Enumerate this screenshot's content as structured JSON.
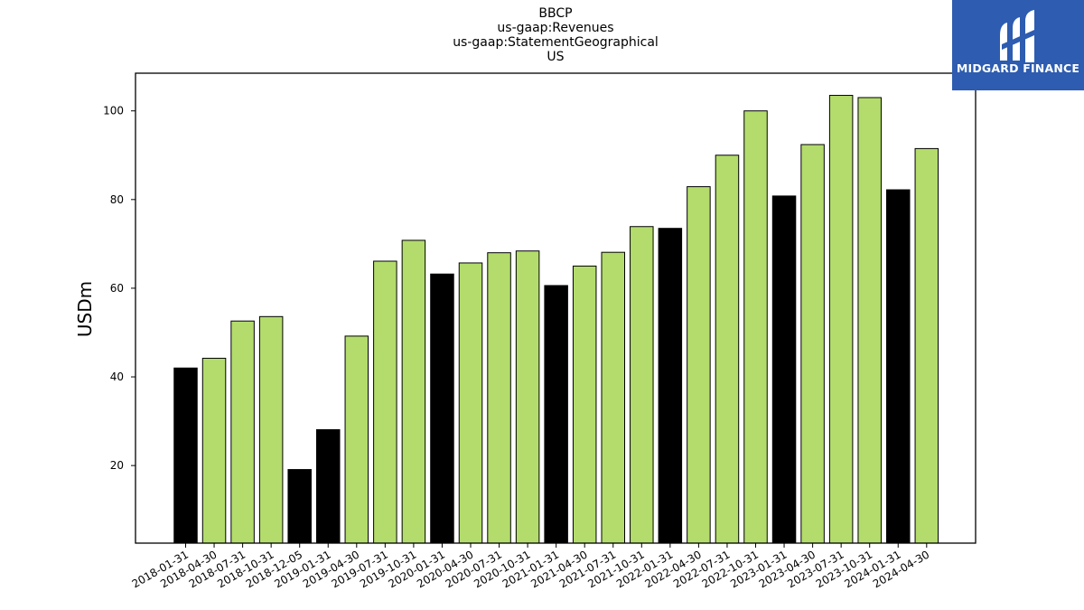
{
  "brand": {
    "name": "MIDGARD FINANCE",
    "bg_color": "#2d5cb0"
  },
  "chart_data": {
    "type": "bar",
    "title_lines": [
      "BBCP",
      "us-gaap:Revenues",
      "us-gaap:StatementGeographical",
      "US"
    ],
    "xlabel": "",
    "ylabel": "USDm",
    "ylim": [
      2.5,
      108.5
    ],
    "yticks": [
      20,
      40,
      60,
      80,
      100
    ],
    "grid": false,
    "colors": {
      "annual": "#000000",
      "quarterly": "#b3dc6c"
    },
    "categories": [
      "2018-01-31",
      "2018-04-30",
      "2018-07-31",
      "2018-10-31",
      "2018-12-05",
      "2019-01-31",
      "2019-04-30",
      "2019-07-31",
      "2019-10-31",
      "2020-01-31",
      "2020-04-30",
      "2020-07-31",
      "2020-10-31",
      "2021-01-31",
      "2021-04-30",
      "2021-07-31",
      "2021-10-31",
      "2022-01-31",
      "2022-04-30",
      "2022-07-31",
      "2022-10-31",
      "2023-01-31",
      "2023-04-30",
      "2023-07-31",
      "2023-10-31",
      "2024-01-31",
      "2024-04-30"
    ],
    "values": [
      42.0,
      44.2,
      52.6,
      53.6,
      19.1,
      28.1,
      49.2,
      66.1,
      70.8,
      63.2,
      65.7,
      68.0,
      68.4,
      60.6,
      65.0,
      68.1,
      73.9,
      73.5,
      82.9,
      90.0,
      100.0,
      80.8,
      92.4,
      103.5,
      103.0,
      82.2,
      91.5
    ],
    "bar_kind": [
      "annual",
      "quarterly",
      "quarterly",
      "quarterly",
      "annual",
      "annual",
      "quarterly",
      "quarterly",
      "quarterly",
      "annual",
      "quarterly",
      "quarterly",
      "quarterly",
      "annual",
      "quarterly",
      "quarterly",
      "quarterly",
      "annual",
      "quarterly",
      "quarterly",
      "quarterly",
      "annual",
      "quarterly",
      "quarterly",
      "quarterly",
      "annual",
      "quarterly"
    ]
  }
}
